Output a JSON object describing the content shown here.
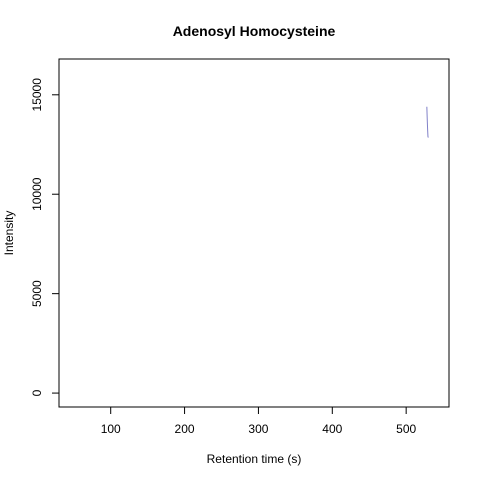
{
  "chart_data": {
    "type": "line",
    "title": "Adenosyl Homocysteine",
    "xlabel": "Retention time (s)",
    "ylabel": "Intensity",
    "xlim": [
      30,
      558
    ],
    "ylim": [
      -700,
      16800
    ],
    "x_ticks": [
      100,
      200,
      300,
      400,
      500
    ],
    "y_ticks": [
      0,
      5000,
      10000,
      15000
    ],
    "grid": false,
    "series": [
      {
        "color": "#8080c8",
        "x": [
          528,
          528.5,
          529,
          529.5,
          530
        ],
        "y": [
          14400,
          13800,
          13300,
          12900,
          12850
        ]
      }
    ]
  }
}
